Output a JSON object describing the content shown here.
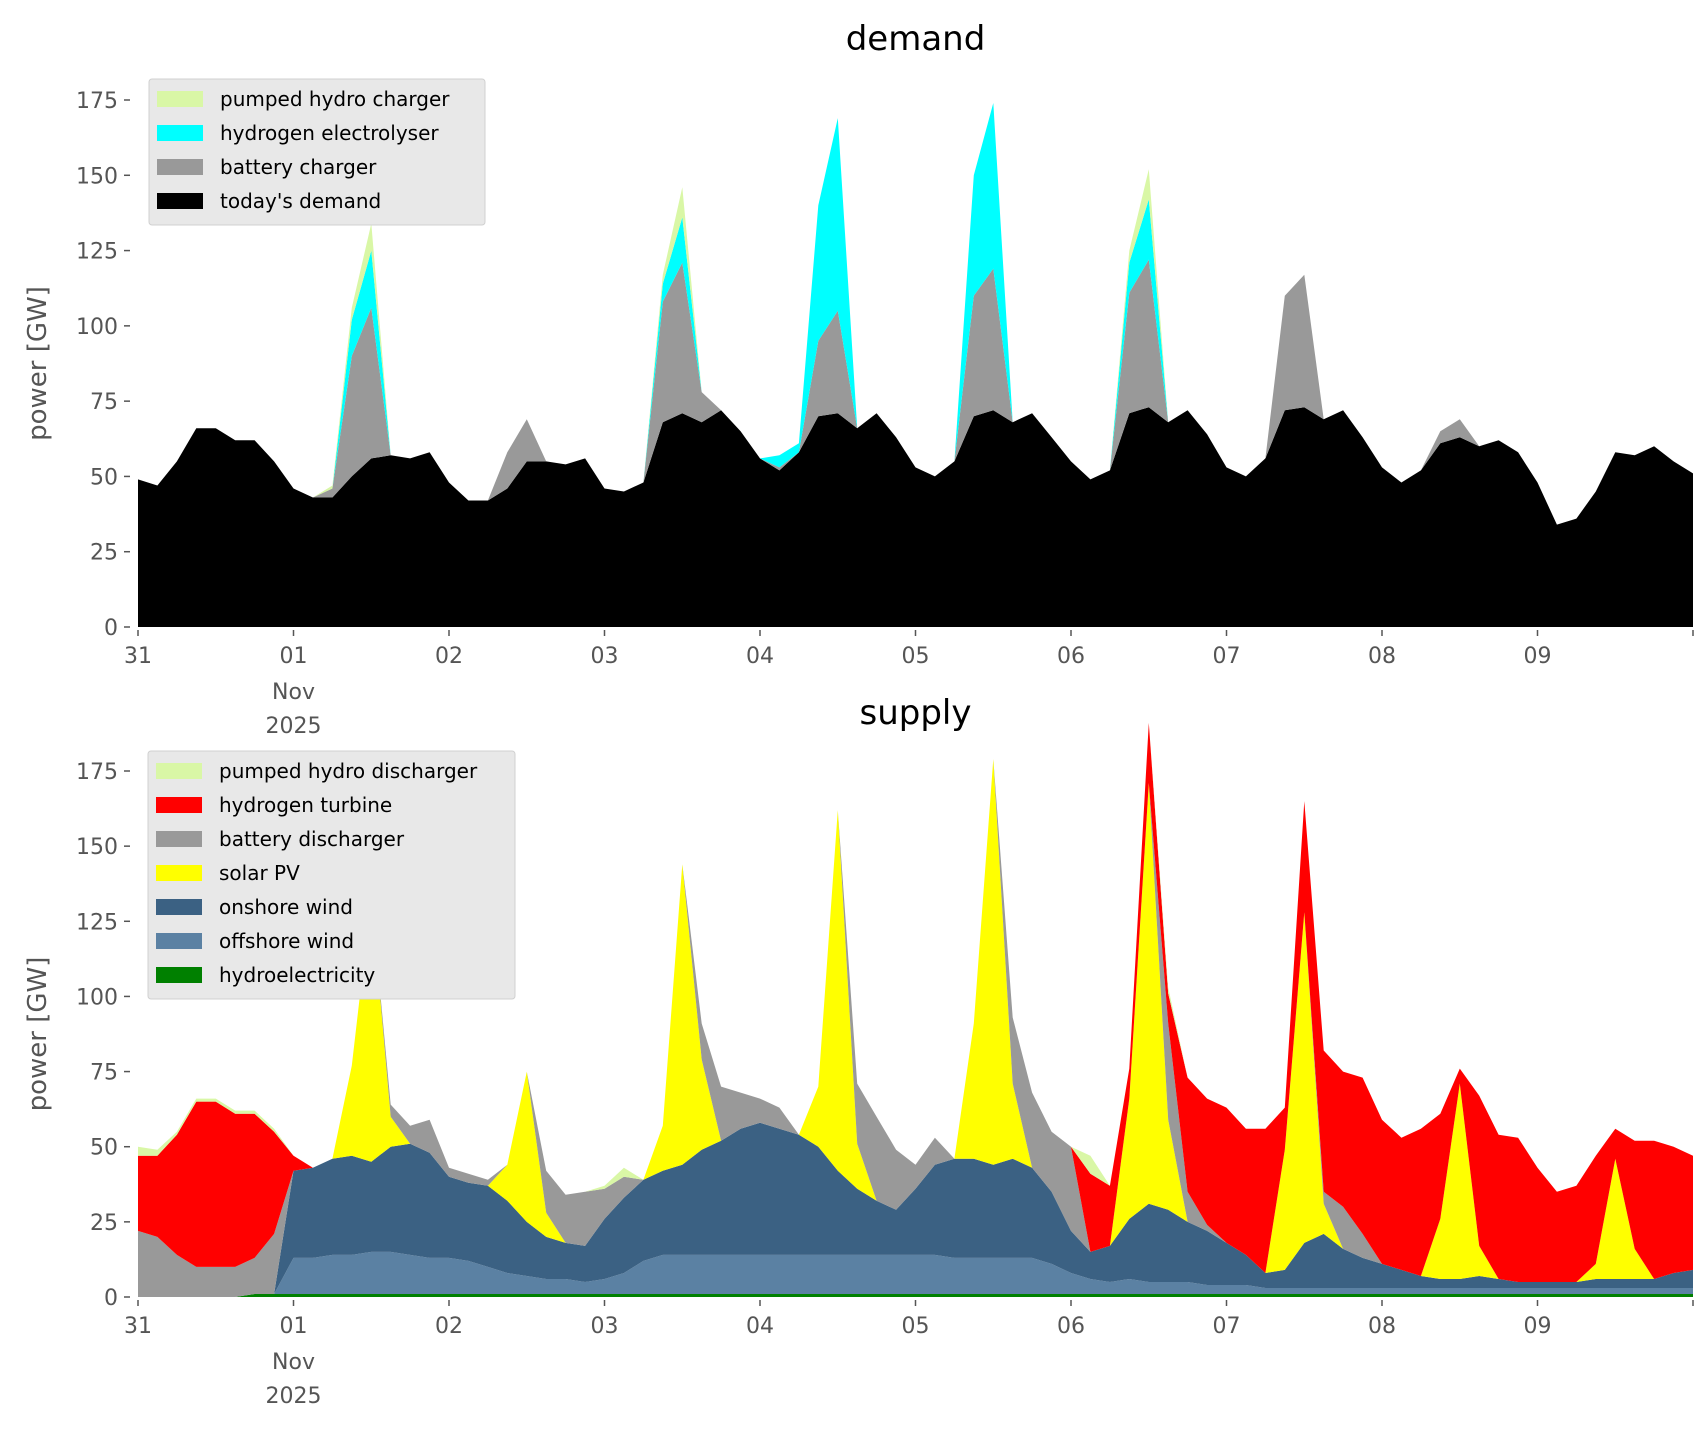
{
  "chart_data": [
    {
      "type": "area",
      "stacked": true,
      "title": "demand",
      "xlabel": "",
      "ylabel": "power [GW]",
      "ylim": [
        0,
        180
      ],
      "yticks": [
        0,
        25,
        50,
        75,
        100,
        125,
        150,
        175
      ],
      "xlim_days": [
        0,
        10
      ],
      "xticks": [
        {
          "day": 0,
          "label": "31"
        },
        {
          "day": 1,
          "label": "01",
          "sublabel": "Nov\n2025"
        },
        {
          "day": 2,
          "label": "02"
        },
        {
          "day": 3,
          "label": "03"
        },
        {
          "day": 4,
          "label": "04"
        },
        {
          "day": 5,
          "label": "05"
        },
        {
          "day": 6,
          "label": "06"
        },
        {
          "day": 7,
          "label": "07"
        },
        {
          "day": 8,
          "label": "08"
        },
        {
          "day": 9,
          "label": "09"
        }
      ],
      "x_step_hours": 3,
      "legend_position": "top-left",
      "grid": false,
      "series": [
        {
          "name": "today's demand",
          "color": "#000000",
          "values": [
            49,
            47,
            55,
            66,
            66,
            62,
            62,
            55,
            46,
            43,
            43,
            50,
            56,
            57,
            56,
            58,
            48,
            42,
            42,
            46,
            55,
            55,
            54,
            56,
            46,
            45,
            48,
            68,
            71,
            68,
            72,
            65,
            56,
            52,
            58,
            70,
            71,
            66,
            71,
            63,
            53,
            50,
            55,
            70,
            72,
            68,
            71,
            63,
            55,
            49,
            52,
            71,
            73,
            68,
            72,
            64,
            53,
            50,
            56,
            72,
            73,
            69,
            72,
            63,
            53,
            48,
            52,
            61,
            63,
            60,
            62,
            58,
            48,
            34,
            36,
            45,
            58,
            57,
            60,
            55,
            51
          ]
        },
        {
          "name": "battery charger",
          "color": "#999999",
          "values": [
            0,
            0,
            0,
            0,
            0,
            0,
            0,
            0,
            0,
            0,
            3,
            40,
            50,
            0,
            0,
            0,
            0,
            0,
            0,
            12,
            14,
            0,
            0,
            0,
            0,
            0,
            0,
            40,
            50,
            10,
            0,
            0,
            0,
            1,
            0,
            25,
            34,
            0,
            0,
            0,
            0,
            0,
            0,
            40,
            47,
            0,
            0,
            0,
            0,
            0,
            0,
            40,
            49,
            0,
            0,
            0,
            0,
            0,
            0,
            38,
            44,
            0,
            0,
            0,
            0,
            0,
            0,
            4,
            6,
            0,
            0,
            0,
            0,
            0,
            0,
            0,
            0,
            0,
            0,
            0,
            0
          ]
        },
        {
          "name": "hydrogen electrolyser",
          "color": "#00ffff",
          "values": [
            0,
            0,
            0,
            0,
            0,
            0,
            0,
            0,
            0,
            0,
            0,
            12,
            19,
            0,
            0,
            0,
            0,
            0,
            0,
            0,
            0,
            0,
            0,
            0,
            0,
            0,
            0,
            6,
            15,
            0,
            0,
            0,
            0,
            4,
            3,
            45,
            64,
            0,
            0,
            0,
            0,
            0,
            0,
            40,
            55,
            0,
            0,
            0,
            0,
            0,
            0,
            10,
            20,
            0,
            0,
            0,
            0,
            0,
            0,
            0,
            0,
            0,
            0,
            0,
            0,
            0,
            0,
            0,
            0,
            0,
            0,
            0,
            0,
            0,
            0,
            0,
            0,
            0,
            0,
            0,
            0
          ]
        },
        {
          "name": "pumped hydro charger",
          "color": "#d9f7a6",
          "values": [
            0,
            0,
            0,
            0,
            0,
            0,
            0,
            0,
            0,
            0,
            1,
            4,
            9,
            0,
            0,
            0,
            0,
            0,
            0,
            0,
            0,
            0,
            0,
            0,
            0,
            0,
            0,
            3,
            10,
            0,
            0,
            0,
            0,
            0,
            0,
            0,
            0,
            0,
            0,
            0,
            0,
            0,
            0,
            0,
            0,
            0,
            0,
            0,
            0,
            0,
            0,
            4,
            10,
            0,
            0,
            0,
            0,
            0,
            0,
            0,
            0,
            0,
            0,
            0,
            0,
            0,
            0,
            0,
            0,
            0,
            0,
            0,
            0,
            0,
            0,
            0,
            0,
            0,
            0,
            0,
            0
          ]
        }
      ],
      "legend_order": [
        "pumped hydro charger",
        "hydrogen electrolyser",
        "battery charger",
        "today's demand"
      ]
    },
    {
      "type": "area",
      "stacked": true,
      "title": "supply",
      "xlabel": "",
      "ylabel": "power [GW]",
      "ylim": [
        0,
        180
      ],
      "yticks": [
        0,
        25,
        50,
        75,
        100,
        125,
        150,
        175
      ],
      "xlim_days": [
        0,
        10
      ],
      "xticks": [
        {
          "day": 0,
          "label": "31"
        },
        {
          "day": 1,
          "label": "01",
          "sublabel": "Nov\n2025"
        },
        {
          "day": 2,
          "label": "02"
        },
        {
          "day": 3,
          "label": "03"
        },
        {
          "day": 4,
          "label": "04"
        },
        {
          "day": 5,
          "label": "05"
        },
        {
          "day": 6,
          "label": "06"
        },
        {
          "day": 7,
          "label": "07"
        },
        {
          "day": 8,
          "label": "08"
        },
        {
          "day": 9,
          "label": "09"
        }
      ],
      "x_step_hours": 3,
      "legend_position": "top-left",
      "grid": false,
      "series": [
        {
          "name": "hydroelectricity",
          "color": "#008000",
          "values": [
            0,
            0,
            0,
            0,
            0,
            0,
            1,
            1,
            1,
            1,
            1,
            1,
            1,
            1,
            1,
            1,
            1,
            1,
            1,
            1,
            1,
            1,
            1,
            1,
            1,
            1,
            1,
            1,
            1,
            1,
            1,
            1,
            1,
            1,
            1,
            1,
            1,
            1,
            1,
            1,
            1,
            1,
            1,
            1,
            1,
            1,
            1,
            1,
            1,
            1,
            1,
            1,
            1,
            1,
            1,
            1,
            1,
            1,
            1,
            1,
            1,
            1,
            1,
            1,
            1,
            1,
            1,
            1,
            1,
            1,
            1,
            1,
            1,
            1,
            1,
            1,
            1,
            1,
            1,
            1,
            1
          ]
        },
        {
          "name": "offshore wind",
          "color": "#5b81a3",
          "values": [
            0,
            0,
            0,
            0,
            0,
            0,
            0,
            0,
            12,
            12,
            13,
            13,
            14,
            14,
            13,
            12,
            12,
            11,
            9,
            7,
            6,
            5,
            5,
            4,
            5,
            7,
            11,
            13,
            13,
            13,
            13,
            13,
            13,
            13,
            13,
            13,
            13,
            13,
            13,
            13,
            13,
            13,
            12,
            12,
            12,
            12,
            12,
            10,
            7,
            5,
            4,
            5,
            4,
            4,
            4,
            3,
            3,
            3,
            2,
            2,
            2,
            2,
            2,
            2,
            2,
            2,
            2,
            2,
            2,
            2,
            2,
            2,
            2,
            2,
            2,
            2,
            2,
            2,
            2,
            2,
            2
          ]
        },
        {
          "name": "onshore wind",
          "color": "#3b6183",
          "values": [
            0,
            0,
            0,
            0,
            0,
            0,
            0,
            0,
            29,
            30,
            32,
            33,
            30,
            35,
            37,
            35,
            27,
            26,
            27,
            24,
            18,
            14,
            12,
            12,
            20,
            25,
            27,
            28,
            30,
            35,
            38,
            42,
            44,
            42,
            40,
            36,
            28,
            22,
            18,
            15,
            22,
            30,
            33,
            33,
            31,
            33,
            30,
            24,
            14,
            9,
            12,
            20,
            26,
            24,
            20,
            18,
            14,
            10,
            5,
            6,
            15,
            18,
            13,
            10,
            8,
            6,
            4,
            3,
            3,
            4,
            3,
            2,
            2,
            2,
            2,
            3,
            3,
            3,
            3,
            5,
            6
          ]
        },
        {
          "name": "solar PV",
          "color": "#ffff00",
          "values": [
            0,
            0,
            0,
            0,
            0,
            0,
            0,
            0,
            0,
            0,
            0,
            30,
            88,
            10,
            0,
            0,
            0,
            0,
            0,
            12,
            50,
            8,
            0,
            0,
            0,
            0,
            0,
            15,
            100,
            30,
            0,
            0,
            0,
            0,
            0,
            20,
            120,
            15,
            0,
            0,
            0,
            0,
            0,
            45,
            135,
            25,
            0,
            0,
            0,
            0,
            0,
            40,
            140,
            30,
            0,
            0,
            0,
            0,
            0,
            40,
            110,
            10,
            0,
            0,
            0,
            0,
            0,
            20,
            65,
            10,
            0,
            0,
            0,
            0,
            0,
            5,
            40,
            10,
            0,
            0,
            0
          ]
        },
        {
          "name": "battery discharger",
          "color": "#999999",
          "values": [
            22,
            20,
            14,
            10,
            10,
            10,
            12,
            20,
            0,
            0,
            0,
            0,
            0,
            4,
            6,
            11,
            3,
            3,
            2,
            0,
            0,
            14,
            16,
            18,
            10,
            7,
            0,
            0,
            0,
            12,
            18,
            12,
            8,
            7,
            0,
            0,
            0,
            20,
            28,
            20,
            8,
            9,
            0,
            0,
            0,
            22,
            25,
            20,
            28,
            0,
            0,
            0,
            0,
            32,
            10,
            2,
            0,
            0,
            0,
            0,
            0,
            4,
            14,
            8,
            0,
            0,
            0,
            0,
            0,
            0,
            0,
            0,
            0,
            0,
            0,
            0,
            0,
            0,
            0,
            0,
            0
          ]
        },
        {
          "name": "hydrogen turbine",
          "color": "#ff0000",
          "values": [
            25,
            27,
            40,
            55,
            55,
            51,
            48,
            34,
            5,
            0,
            0,
            0,
            0,
            0,
            0,
            0,
            0,
            0,
            0,
            0,
            0,
            0,
            0,
            0,
            0,
            0,
            0,
            0,
            0,
            0,
            0,
            0,
            0,
            0,
            0,
            0,
            0,
            0,
            0,
            0,
            0,
            0,
            0,
            0,
            0,
            0,
            0,
            0,
            0,
            26,
            20,
            10,
            20,
            10,
            38,
            42,
            45,
            42,
            48,
            14,
            37,
            47,
            45,
            52,
            48,
            44,
            49,
            35,
            5,
            50,
            48,
            48,
            38,
            30,
            32,
            36,
            10,
            36,
            46,
            42,
            38
          ]
        },
        {
          "name": "pumped hydro discharger",
          "color": "#d9f7a6",
          "values": [
            3,
            2,
            1,
            1,
            1,
            1,
            1,
            1,
            0,
            0,
            0,
            0,
            0,
            0,
            0,
            0,
            0,
            0,
            0,
            0,
            0,
            0,
            0,
            0,
            1,
            3,
            0,
            0,
            0,
            0,
            0,
            0,
            0,
            0,
            0,
            0,
            0,
            0,
            0,
            0,
            0,
            0,
            0,
            0,
            0,
            0,
            0,
            0,
            0,
            6,
            0,
            0,
            0,
            2,
            0,
            0,
            0,
            0,
            0,
            0,
            0,
            0,
            0,
            0,
            0,
            0,
            0,
            0,
            0,
            0,
            0,
            0,
            0,
            0,
            0,
            0,
            0,
            0,
            0,
            0,
            0
          ]
        }
      ],
      "legend_order": [
        "pumped hydro discharger",
        "hydrogen turbine",
        "battery discharger",
        "solar PV",
        "onshore wind",
        "offshore wind",
        "hydroelectricity"
      ]
    }
  ]
}
